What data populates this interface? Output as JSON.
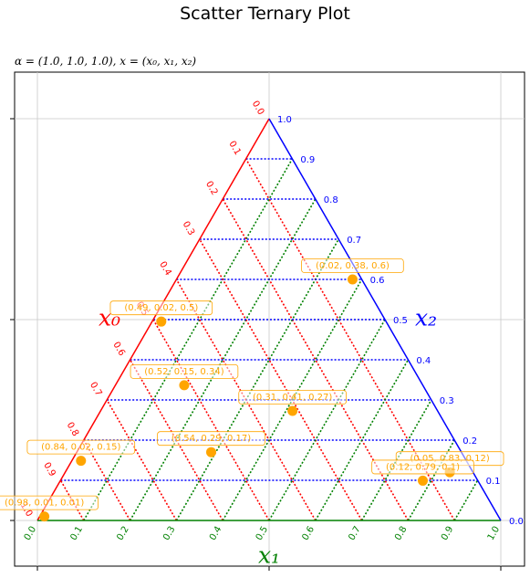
{
  "chart_data": {
    "type": "scatter",
    "subtype": "ternary",
    "title": "Scatter Ternary Plot",
    "subtitle": "α = (1.0, 1.0, 1.0), x = (x₀, x₁, x₂)",
    "axes": [
      {
        "name": "x0",
        "label": "x₀",
        "color": "#ff0000"
      },
      {
        "name": "x1",
        "label": "x₁",
        "color": "#008000"
      },
      {
        "name": "x2",
        "label": "x₂",
        "color": "#0000ff"
      }
    ],
    "ticks": [
      "0.0",
      "0.1",
      "0.2",
      "0.3",
      "0.4",
      "0.5",
      "0.6",
      "0.7",
      "0.8",
      "0.9",
      "1.0"
    ],
    "grid": true,
    "marker_color": "#ffa500",
    "points": [
      {
        "x0": 0.49,
        "x1": 0.02,
        "x2": 0.5,
        "label": "(0.49, 0.02, 0.5)"
      },
      {
        "x0": 0.02,
        "x1": 0.38,
        "x2": 0.6,
        "label": "(0.02, 0.38, 0.6)"
      },
      {
        "x0": 0.52,
        "x1": 0.15,
        "x2": 0.34,
        "label": "(0.52, 0.15, 0.34)"
      },
      {
        "x0": 0.31,
        "x1": 0.41,
        "x2": 0.27,
        "label": "(0.31, 0.41, 0.27)"
      },
      {
        "x0": 0.54,
        "x1": 0.29,
        "x2": 0.17,
        "label": "(0.54, 0.29, 0.17)"
      },
      {
        "x0": 0.84,
        "x1": 0.02,
        "x2": 0.15,
        "label": "(0.84, 0.02, 0.15)"
      },
      {
        "x0": 0.05,
        "x1": 0.83,
        "x2": 0.12,
        "label": "(0.05, 0.83, 0.12)"
      },
      {
        "x0": 0.12,
        "x1": 0.79,
        "x2": 0.1,
        "label": "(0.12, 0.79, 0.1)"
      },
      {
        "x0": 0.98,
        "x1": 0.01,
        "x2": 0.01,
        "label": "(0.98, 0.01, 0.01)"
      }
    ]
  }
}
